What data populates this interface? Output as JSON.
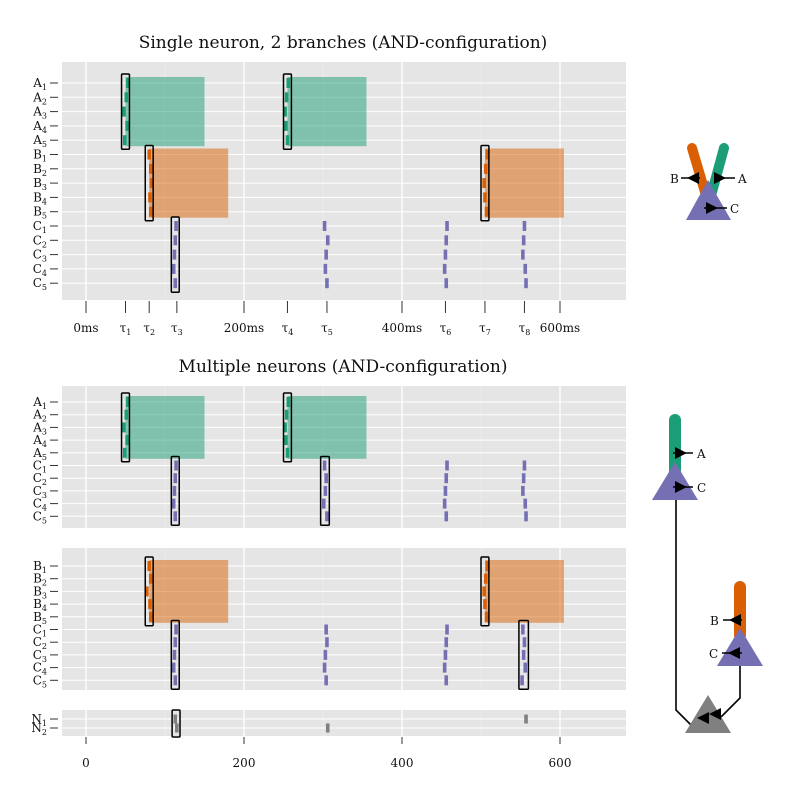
{
  "panels": [
    {
      "title": "Single neuron, 2 branches (AND-configuration)",
      "rows": [
        "A",
        "A",
        "A",
        "A",
        "A",
        "B",
        "B",
        "B",
        "B",
        "B",
        "C",
        "C",
        "C",
        "C",
        "C"
      ],
      "subs": [
        "1",
        "2",
        "3",
        "4",
        "5",
        "1",
        "2",
        "3",
        "4",
        "5",
        "1",
        "2",
        "3",
        "4",
        "5"
      ],
      "regions": [
        {
          "group": "A",
          "start": 50,
          "end": 150
        },
        {
          "group": "A",
          "start": 255,
          "end": 355
        },
        {
          "group": "B",
          "start": 80,
          "end": 180
        },
        {
          "group": "B",
          "start": 505,
          "end": 605
        }
      ],
      "boxes": [
        {
          "r0": 0,
          "r1": 4,
          "start": 45,
          "end": 55
        },
        {
          "r0": 0,
          "r1": 4,
          "start": 250,
          "end": 260
        },
        {
          "r0": 5,
          "r1": 9,
          "start": 75,
          "end": 85
        },
        {
          "r0": 5,
          "r1": 9,
          "start": 500,
          "end": 510
        },
        {
          "r0": 10,
          "r1": 14,
          "start": 108,
          "end": 118
        }
      ],
      "spikes": [
        [
          53,
          51,
          48,
          52,
          49
        ],
        [
          256,
          254,
          252,
          253,
          255
        ],
        [
          80,
          82,
          83,
          81,
          82
        ],
        [
          508,
          506,
          504,
          505,
          507
        ],
        [
          114,
          113,
          112,
          111,
          113
        ],
        [
          302,
          306,
          304,
          303,
          305
        ],
        [
          457,
          456,
          455,
          454,
          456
        ],
        [
          555,
          554,
          553,
          556,
          557
        ]
      ],
      "ticks": [
        {
          "t": 0,
          "label": "0ms",
          "sub": ""
        },
        {
          "t": 50,
          "label": "τ",
          "sub": "1"
        },
        {
          "t": 80,
          "label": "τ",
          "sub": "2"
        },
        {
          "t": 115,
          "label": "τ",
          "sub": "3"
        },
        {
          "t": 200,
          "label": "200ms",
          "sub": ""
        },
        {
          "t": 255,
          "label": "τ",
          "sub": "4"
        },
        {
          "t": 305,
          "label": "τ",
          "sub": "5"
        },
        {
          "t": 400,
          "label": "400ms",
          "sub": ""
        },
        {
          "t": 455,
          "label": "τ",
          "sub": "6"
        },
        {
          "t": 505,
          "label": "τ",
          "sub": "7"
        },
        {
          "t": 555,
          "label": "τ",
          "sub": "8"
        },
        {
          "t": 600,
          "label": "600ms",
          "sub": ""
        }
      ]
    },
    {
      "title": "Multiple neurons (AND-configuration)",
      "axis": [
        0,
        200,
        400,
        600
      ],
      "subpanels": [
        {
          "rows": [
            "A",
            "A",
            "A",
            "A",
            "A",
            "C",
            "C",
            "C",
            "C",
            "C"
          ],
          "subs": [
            "1",
            "2",
            "3",
            "4",
            "5",
            "1",
            "2",
            "3",
            "4",
            "5"
          ],
          "regions": [
            {
              "group": "A",
              "start": 50,
              "end": 150
            },
            {
              "group": "A",
              "start": 255,
              "end": 355
            }
          ],
          "boxes": [
            {
              "r0": 0,
              "r1": 4,
              "start": 45,
              "end": 55
            },
            {
              "r0": 0,
              "r1": 4,
              "start": 250,
              "end": 260
            },
            {
              "r0": 5,
              "r1": 9,
              "start": 108,
              "end": 118
            },
            {
              "r0": 5,
              "r1": 9,
              "start": 297,
              "end": 308
            }
          ],
          "spikes": [
            [
              53,
              51,
              48,
              52,
              49
            ],
            [
              256,
              254,
              252,
              253,
              255
            ],
            [
              114,
              113,
              112,
              111,
              113
            ],
            [
              302,
              304,
              303,
              301,
              305
            ],
            [
              457,
              456,
              455,
              454,
              456
            ],
            [
              555,
              554,
              553,
              556,
              557
            ]
          ]
        },
        {
          "rows": [
            "B",
            "B",
            "B",
            "B",
            "B",
            "C",
            "C",
            "C",
            "C",
            "C"
          ],
          "subs": [
            "1",
            "2",
            "3",
            "4",
            "5",
            "1",
            "2",
            "3",
            "4",
            "5"
          ],
          "regions": [
            {
              "group": "B",
              "start": 80,
              "end": 180
            },
            {
              "group": "B",
              "start": 505,
              "end": 605
            }
          ],
          "boxes": [
            {
              "r0": 0,
              "r1": 4,
              "start": 75,
              "end": 85
            },
            {
              "r0": 0,
              "r1": 4,
              "start": 500,
              "end": 510
            },
            {
              "r0": 5,
              "r1": 9,
              "start": 108,
              "end": 118
            },
            {
              "r0": 5,
              "r1": 9,
              "start": 548,
              "end": 560
            }
          ],
          "spikes": [
            [
              80,
              82,
              77,
              81,
              82
            ],
            [
              508,
              506,
              504,
              505,
              507
            ],
            [
              114,
              113,
              112,
              111,
              113
            ],
            [
              304,
              305,
              303,
              302,
              304
            ],
            [
              457,
              456,
              455,
              454,
              456
            ],
            [
              553,
              555,
              554,
              556,
              552
            ]
          ]
        },
        {
          "rows": [
            "N",
            "N"
          ],
          "subs": [
            "1",
            "2"
          ],
          "regions": [],
          "boxes": [
            {
              "r0": 0,
              "r1": 1,
              "start": 109,
              "end": 119
            }
          ],
          "spikes_gray": [
            {
              "row": 0,
              "t": 113
            },
            {
              "row": 1,
              "t": 115
            },
            {
              "row": 1,
              "t": 306
            },
            {
              "row": 0,
              "t": 557
            }
          ]
        }
      ]
    }
  ],
  "neuron_labels": {
    "single": {
      "a": "A",
      "b": "B",
      "c": "C"
    },
    "top": {
      "a": "A",
      "c": "C"
    },
    "mid": {
      "b": "B",
      "c": "C"
    }
  },
  "colors": {
    "A": "#1b9e77",
    "B": "#d95f02",
    "C": "#7570b3",
    "N": "#808080",
    "panel_bg": "#e5e5e5",
    "grid": "#ffffff"
  }
}
